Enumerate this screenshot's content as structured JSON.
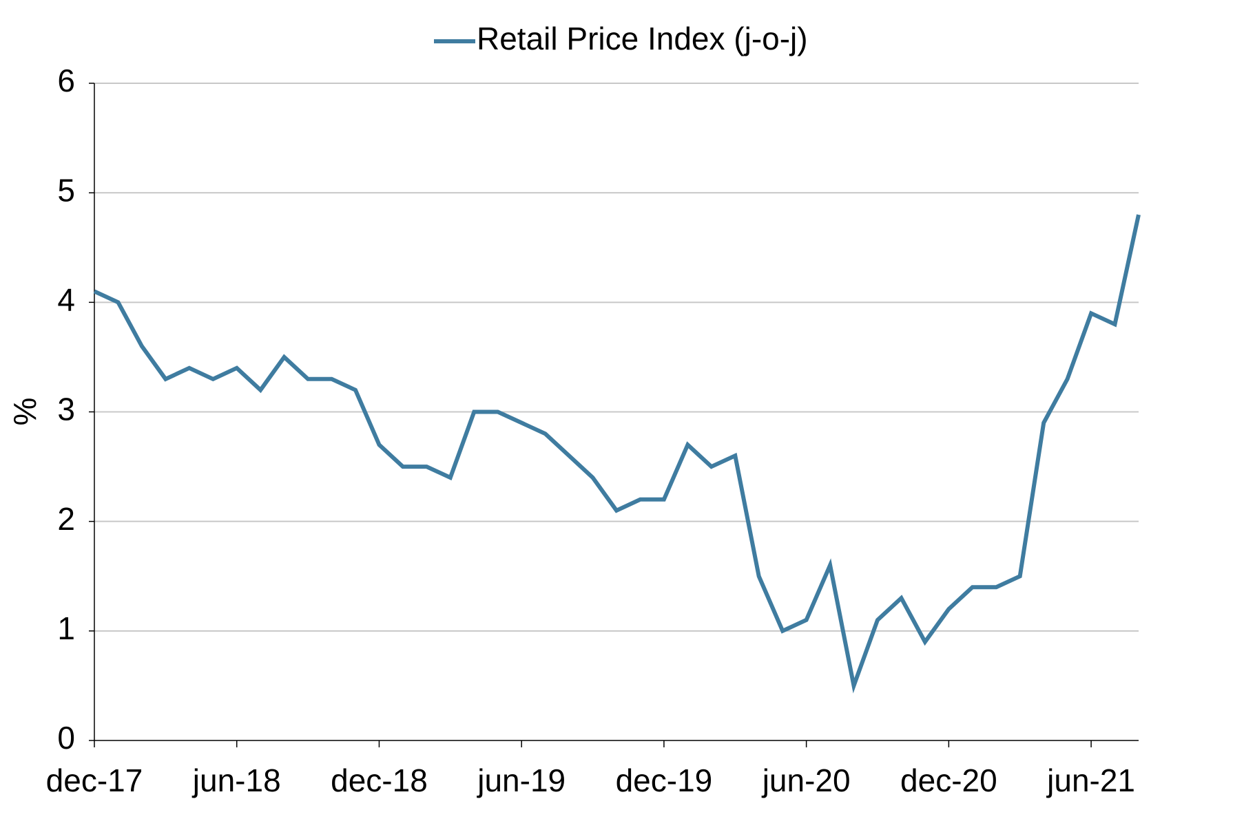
{
  "chart_data": {
    "type": "line",
    "y_label": "%",
    "categories": [
      "dec-17",
      null,
      null,
      null,
      null,
      null,
      "jun-18",
      null,
      null,
      null,
      null,
      null,
      "dec-18",
      null,
      null,
      null,
      null,
      null,
      "jun-19",
      null,
      null,
      null,
      null,
      null,
      "dec-19",
      null,
      null,
      null,
      null,
      null,
      "jun-20",
      null,
      null,
      null,
      null,
      null,
      "dec-20",
      null,
      null,
      null,
      null,
      null,
      "jun-21",
      null,
      null
    ],
    "series": [
      {
        "name": "Retail Price Index (j-o-j)",
        "color": "#3f7ca0",
        "values": [
          4.1,
          4.0,
          3.6,
          3.3,
          3.4,
          3.3,
          3.4,
          3.2,
          3.5,
          3.3,
          3.3,
          3.2,
          2.7,
          2.5,
          2.5,
          2.4,
          3.0,
          3.0,
          2.9,
          2.8,
          2.6,
          2.4,
          2.1,
          2.2,
          2.2,
          2.7,
          2.5,
          2.6,
          1.5,
          1.0,
          1.1,
          1.6,
          0.5,
          1.1,
          1.3,
          0.9,
          1.2,
          1.4,
          1.4,
          1.5,
          2.9,
          3.3,
          3.9,
          3.8,
          4.8
        ]
      }
    ],
    "ylim": [
      0,
      6
    ],
    "yticks": [
      0,
      1,
      2,
      3,
      4,
      5,
      6
    ],
    "grid": true,
    "legend": "top"
  }
}
